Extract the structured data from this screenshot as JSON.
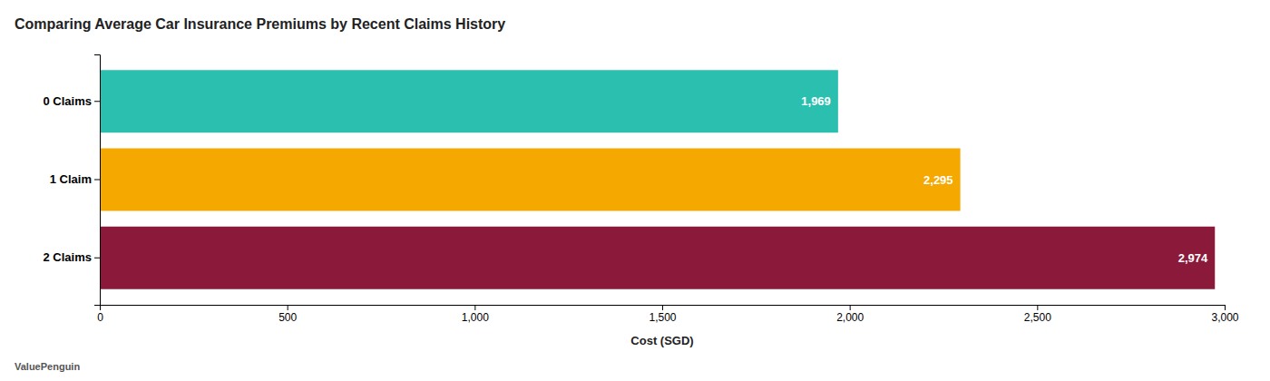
{
  "chart_data": {
    "type": "bar",
    "orientation": "horizontal",
    "title": "Comparing Average Car Insurance Premiums by Recent Claims History",
    "categories": [
      "0 Claims",
      "1 Claim",
      "2 Claims"
    ],
    "values": [
      1969,
      2295,
      2974
    ],
    "value_labels": [
      "1,969",
      "2,295",
      "2,974"
    ],
    "colors": [
      "#2bbfb0",
      "#f5a800",
      "#8b1a3a"
    ],
    "xlabel": "Cost (SGD)",
    "xlim": [
      0,
      3000
    ],
    "xticks": [
      0,
      500,
      {
        "value": 1000,
        "label": "1,000"
      },
      {
        "value": 1500,
        "label": "1,500"
      },
      {
        "value": 2000,
        "label": "2,000"
      },
      {
        "value": 2500,
        "label": "2,500"
      },
      {
        "value": 3000,
        "label": "3,000"
      }
    ],
    "data_labels": true,
    "grid": false,
    "annotations": [
      "ValuePenguin"
    ]
  }
}
